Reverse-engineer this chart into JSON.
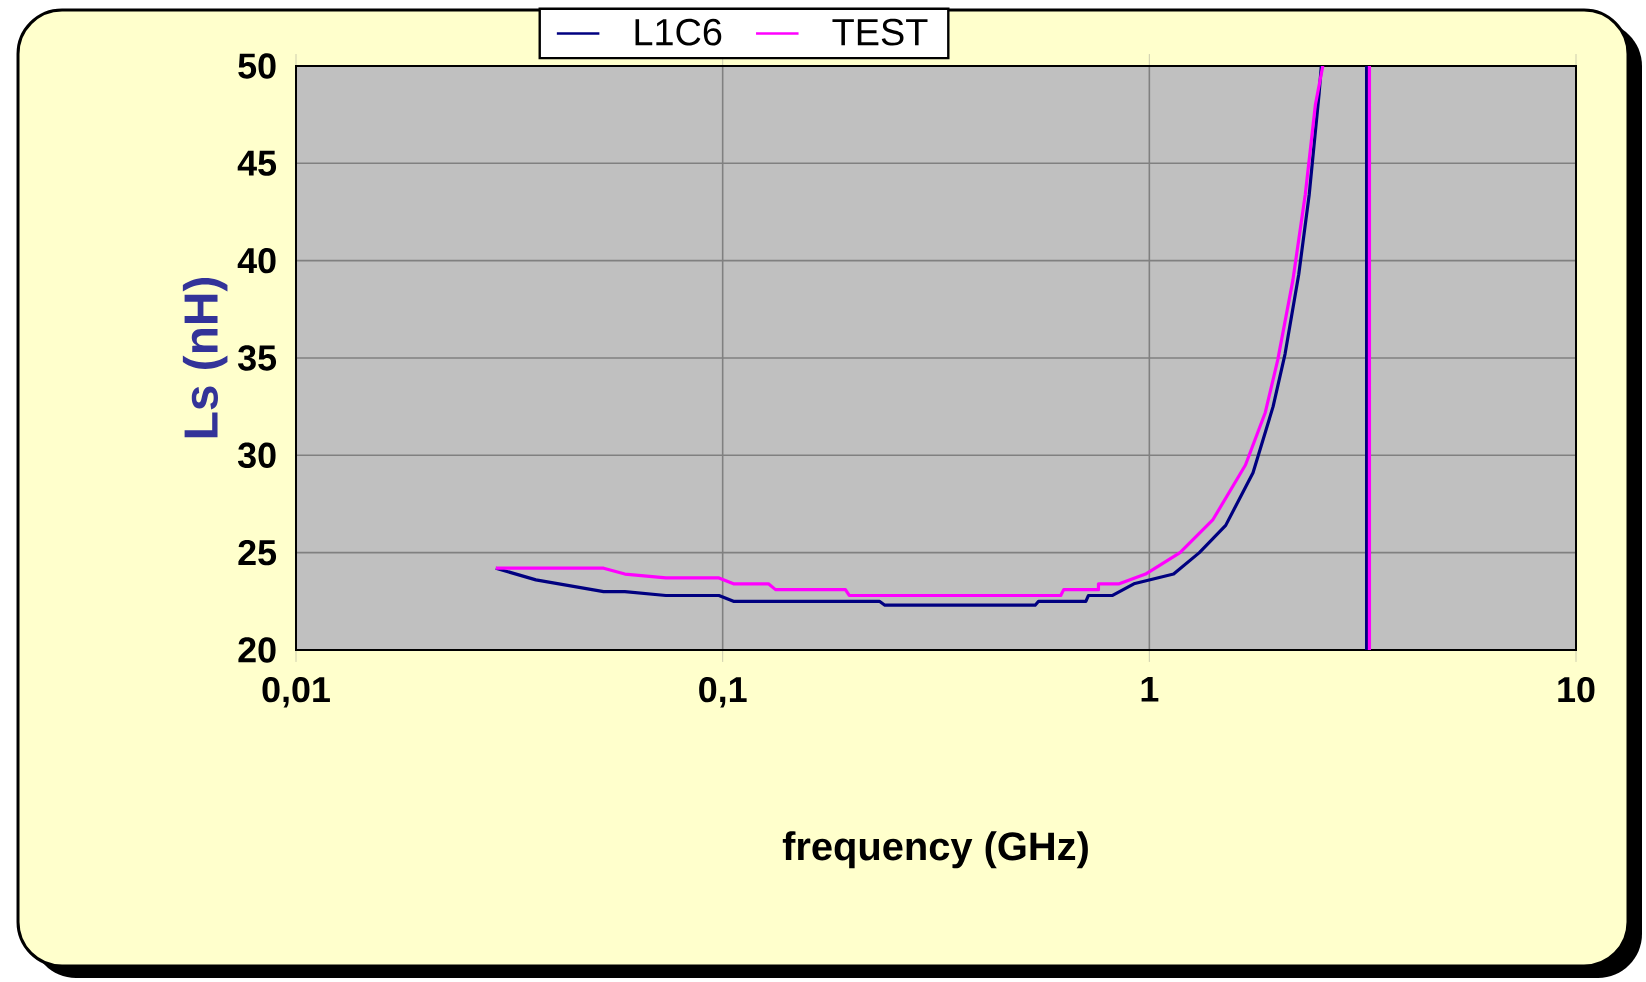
{
  "chart_data": {
    "type": "line",
    "xlabel": "frequency (GHz)",
    "ylabel": "Ls (nH)",
    "xlim": [
      0.01,
      10
    ],
    "ylim": [
      20,
      50
    ],
    "log": "x",
    "grid": true,
    "legend": "top",
    "xticks": [
      {
        "value": 0.01,
        "label": "0,01"
      },
      {
        "value": 0.1,
        "label": "0,1"
      },
      {
        "value": 1,
        "label": "1"
      },
      {
        "value": 10,
        "label": "10"
      }
    ],
    "yticks": [
      20,
      25,
      30,
      35,
      40,
      45,
      50
    ],
    "series": [
      {
        "name": "L1C6",
        "color": "#000080",
        "x": [
          0.0294,
          0.0365,
          0.0526,
          0.059,
          0.0736,
          0.098,
          0.106,
          0.233,
          0.24,
          0.54,
          0.55,
          0.71,
          0.72,
          0.82,
          0.92,
          1.14,
          1.31,
          1.51,
          1.75,
          1.95,
          2.08,
          2.24,
          2.37,
          2.5,
          2.53,
          2.9,
          3.23,
          3.23
        ],
        "values": [
          24.2,
          23.6,
          23.0,
          23.0,
          22.8,
          22.8,
          22.5,
          22.5,
          22.3,
          22.3,
          22.5,
          22.5,
          22.8,
          22.8,
          23.4,
          23.9,
          25.0,
          26.4,
          29.1,
          32.5,
          35.2,
          39.3,
          43.4,
          48.6,
          50,
          null,
          50,
          20
        ]
      },
      {
        "name": "TEST",
        "color": "#ff00ff",
        "x": [
          0.0294,
          0.0526,
          0.059,
          0.0736,
          0.098,
          0.106,
          0.128,
          0.133,
          0.194,
          0.198,
          0.62,
          0.63,
          0.76,
          0.76,
          0.85,
          0.98,
          1.18,
          1.41,
          1.68,
          1.87,
          2.0,
          2.17,
          2.32,
          2.45,
          2.55,
          2.9,
          3.28,
          3.28
        ],
        "values": [
          24.2,
          24.2,
          23.9,
          23.7,
          23.7,
          23.4,
          23.4,
          23.1,
          23.1,
          22.8,
          22.8,
          23.1,
          23.1,
          23.4,
          23.4,
          23.9,
          25.0,
          26.7,
          29.5,
          32.2,
          34.9,
          39.0,
          43.4,
          48.0,
          50,
          null,
          50,
          20
        ]
      }
    ]
  }
}
